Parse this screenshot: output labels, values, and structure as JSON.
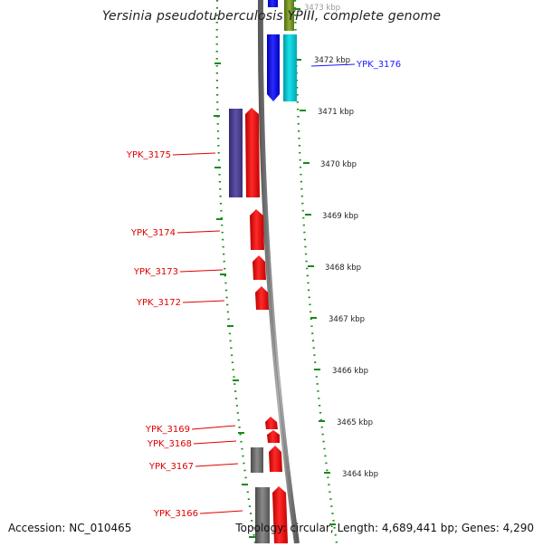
{
  "title": "Yersinia pseudotuberculosis YPIII, complete genome",
  "footer": {
    "accession": "Accession: NC_010465",
    "summary": "Topology: circular; Length: 4,689,441 bp; Genes: 4,290"
  },
  "colors": {
    "forward_strand": "#ff0000",
    "reverse_strand": "#1f1fff",
    "cyan_feature": "#00c8d2",
    "olive_feature": "#6e8c1e",
    "purple_feature": "#4a3f8f",
    "gray_feature": "#707070",
    "backbone": "#8a8a8a",
    "tick": "#1a8a1a"
  },
  "scale_labels": [
    "3473 kbp",
    "3472 kbp",
    "3471 kbp",
    "3470 kbp",
    "3469 kbp",
    "3468 kbp",
    "3467 kbp",
    "3466 kbp",
    "3465 kbp",
    "3464 kbp"
  ],
  "gene_labels": [
    {
      "id": "YPK_3176",
      "color": "#1a1aff"
    },
    {
      "id": "YPK_3175",
      "color": "#e00000"
    },
    {
      "id": "YPK_3174",
      "color": "#e00000"
    },
    {
      "id": "YPK_3173",
      "color": "#e00000"
    },
    {
      "id": "YPK_3172",
      "color": "#e00000"
    },
    {
      "id": "YPK_3169",
      "color": "#e00000"
    },
    {
      "id": "YPK_3168",
      "color": "#e00000"
    },
    {
      "id": "YPK_3167",
      "color": "#e00000"
    },
    {
      "id": "YPK_3166",
      "color": "#e00000"
    }
  ]
}
